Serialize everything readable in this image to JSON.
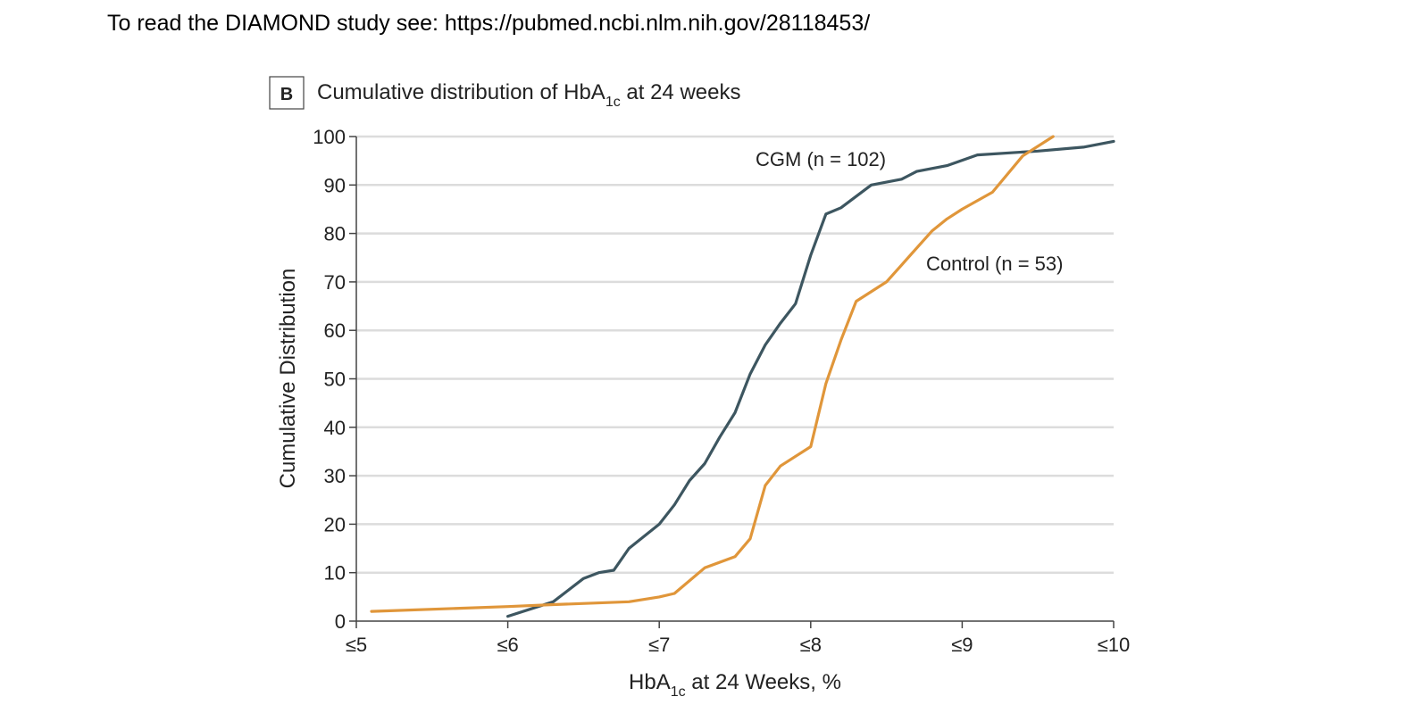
{
  "caption": "To read the DIAMOND study see: https://pubmed.ncbi.nlm.nih.gov/28118453/",
  "panel_label": "B",
  "colors": {
    "cgm": "#3d5660",
    "control": "#e0963a",
    "grid": "#dcdcdc",
    "axis": "#444444"
  },
  "chart_data": {
    "type": "line",
    "title": {
      "pre": "Cumulative distribution of HbA",
      "sub": "1c",
      "post": " at 24 weeks"
    },
    "xlabel": {
      "pre": "HbA",
      "sub": "1c",
      "post": " at 24 Weeks, %"
    },
    "ylabel": "Cumulative Distribution",
    "xlim": [
      5,
      10
    ],
    "ylim": [
      0,
      100
    ],
    "xticks": [
      {
        "value": 5,
        "label": "≤5"
      },
      {
        "value": 6,
        "label": "≤6"
      },
      {
        "value": 7,
        "label": "≤7"
      },
      {
        "value": 8,
        "label": "≤8"
      },
      {
        "value": 9,
        "label": "≤9"
      },
      {
        "value": 10,
        "label": "≤10"
      }
    ],
    "yticks": [
      0,
      10,
      20,
      30,
      40,
      50,
      60,
      70,
      80,
      90,
      100
    ],
    "grid": true,
    "series": [
      {
        "name": "CGM (n = 102)",
        "color_key": "cgm",
        "points": [
          [
            6.0,
            1
          ],
          [
            6.3,
            4
          ],
          [
            6.5,
            8.8
          ],
          [
            6.6,
            10
          ],
          [
            6.7,
            10.5
          ],
          [
            6.8,
            15
          ],
          [
            7.0,
            20
          ],
          [
            7.1,
            24
          ],
          [
            7.2,
            29
          ],
          [
            7.3,
            32.5
          ],
          [
            7.4,
            38
          ],
          [
            7.5,
            43
          ],
          [
            7.6,
            51
          ],
          [
            7.7,
            57
          ],
          [
            7.8,
            61.5
          ],
          [
            7.9,
            65.5
          ],
          [
            8.0,
            75.5
          ],
          [
            8.1,
            84
          ],
          [
            8.2,
            85.3
          ],
          [
            8.4,
            90
          ],
          [
            8.6,
            91.2
          ],
          [
            8.7,
            92.8
          ],
          [
            8.9,
            94
          ],
          [
            9.1,
            96.2
          ],
          [
            9.5,
            97
          ],
          [
            9.8,
            97.8
          ],
          [
            10.0,
            99
          ]
        ]
      },
      {
        "name": "Control (n = 53)",
        "color_key": "control",
        "points": [
          [
            5.1,
            2
          ],
          [
            6.0,
            3
          ],
          [
            6.3,
            3.4
          ],
          [
            6.8,
            4
          ],
          [
            7.0,
            5
          ],
          [
            7.1,
            5.7
          ],
          [
            7.3,
            11
          ],
          [
            7.5,
            13.3
          ],
          [
            7.6,
            17
          ],
          [
            7.7,
            28
          ],
          [
            7.8,
            32
          ],
          [
            8.0,
            36
          ],
          [
            8.1,
            49
          ],
          [
            8.2,
            58
          ],
          [
            8.3,
            66
          ],
          [
            8.5,
            70
          ],
          [
            8.6,
            73.5
          ],
          [
            8.7,
            77
          ],
          [
            8.8,
            80.5
          ],
          [
            8.9,
            83
          ],
          [
            9.0,
            85
          ],
          [
            9.2,
            88.5
          ],
          [
            9.4,
            96
          ],
          [
            9.6,
            100
          ]
        ]
      }
    ]
  }
}
